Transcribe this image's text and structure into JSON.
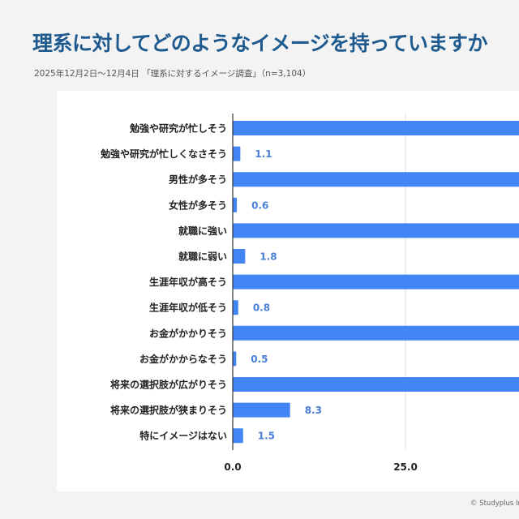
{
  "title": "理系に対してどのようなイメージを持っていますか",
  "subtitle": "2025年12月2日〜12月4日 「理系に対するイメージ調査」（n=3,104）",
  "footer": "© Studyplus Inc.",
  "chart_data": {
    "type": "bar",
    "orientation": "horizontal",
    "categories": [
      "勉強や研究が忙しそう",
      "勉強や研究が忙しくなさそう",
      "男性が多そう",
      "女性が多そう",
      "就職に強い",
      "就職に弱い",
      "生涯年収が高そう",
      "生涯年収が低そう",
      "お金がかかりそう",
      "お金がかからなそう",
      "将来の選択肢が広がりそう",
      "将来の選択肢が狭まりそう",
      "特にイメージはない"
    ],
    "values": [
      null,
      1.1,
      null,
      0.6,
      null,
      1.8,
      null,
      0.8,
      null,
      0.5,
      null,
      8.3,
      1.5
    ],
    "value_labels": [
      "",
      "1.1",
      "",
      "0.6",
      "",
      "1.8",
      "",
      "0.8",
      "",
      "0.5",
      "",
      "8.3",
      "1.5"
    ],
    "note_values": "null = bar extends beyond visible crop; value label not visible",
    "x_ticks": [
      "0.0",
      "25.0"
    ],
    "xlim_visible": [
      0,
      41
    ],
    "grid": true,
    "bar_color": "#4285f4",
    "label_color": "#4a7fd6"
  }
}
